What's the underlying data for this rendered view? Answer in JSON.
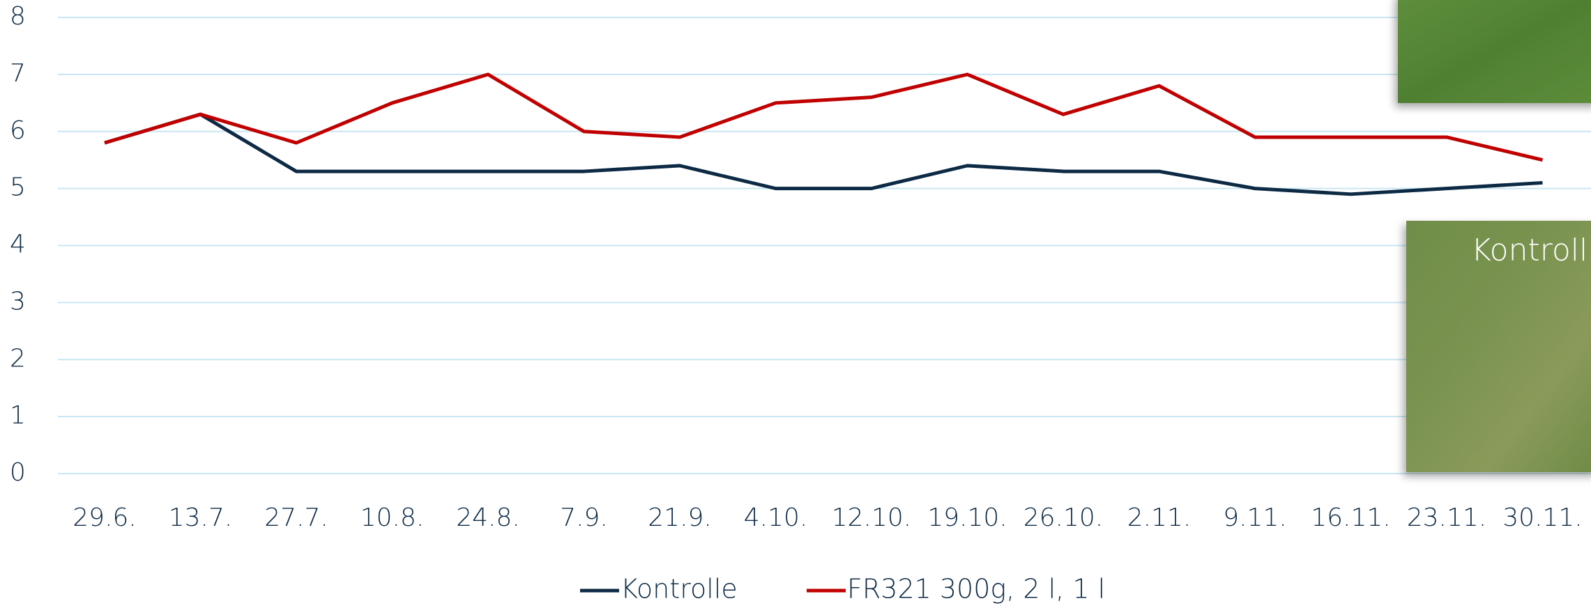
{
  "chart_data": {
    "type": "line",
    "categories": [
      "29.6.",
      "13.7.",
      "27.7.",
      "10.8.",
      "24.8.",
      "7.9.",
      "21.9.",
      "4.10.",
      "12.10.",
      "19.10.",
      "26.10.",
      "2.11.",
      "9.11.",
      "16.11.",
      "23.11.",
      "30.11."
    ],
    "series": [
      {
        "name": "Kontrolle",
        "color": "#0d2a45",
        "values": [
          5.8,
          6.3,
          5.3,
          5.3,
          5.3,
          5.3,
          5.4,
          5.0,
          5.0,
          5.4,
          5.3,
          5.3,
          5.0,
          4.9,
          5.0,
          5.1
        ]
      },
      {
        "name": "FR321 300g, 2 l, 1 l",
        "color": "#c00000",
        "values": [
          5.8,
          6.3,
          5.8,
          6.5,
          7.0,
          6.0,
          5.9,
          6.5,
          6.6,
          7.0,
          6.3,
          6.8,
          5.9,
          5.9,
          5.9,
          5.5
        ]
      }
    ],
    "ylim": [
      0,
      8
    ],
    "yticks": [
      0,
      1,
      2,
      3,
      4,
      5,
      6,
      7,
      8
    ],
    "grid": true,
    "legend": "bottom",
    "annotations": [
      "Kontroll"
    ]
  }
}
